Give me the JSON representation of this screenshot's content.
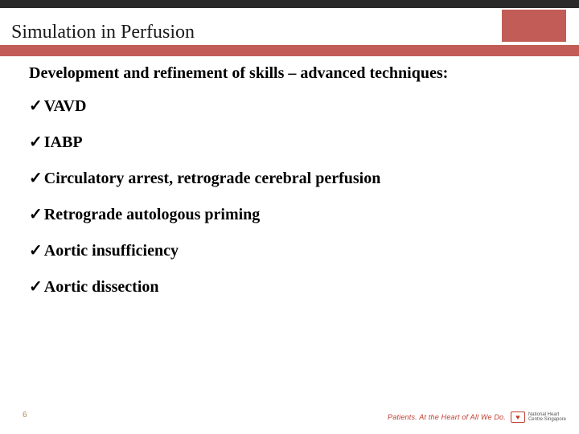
{
  "colors": {
    "top_bar": "#2a2a2a",
    "band": "#c15d56",
    "text": "#000000",
    "tagline": "#c23b2e",
    "page_num": "#b58a5a",
    "background": "#ffffff"
  },
  "typography": {
    "title_fontsize": 24,
    "body_fontsize": 20,
    "body_weight": "bold",
    "footer_fontsize": 9,
    "font_family": "Times New Roman"
  },
  "title": "Simulation in Perfusion",
  "subtitle": "Development and refinement of skills – advanced techniques:",
  "bullet_glyph": "✓",
  "items": [
    "VAVD",
    "IABP",
    "Circulatory arrest, retrograde cerebral perfusion",
    "Retrograde autologous priming",
    "Aortic insufficiency",
    "Aortic dissection"
  ],
  "page_number": "6",
  "footer": {
    "tagline": "Patients. At the Heart of All We Do.",
    "logo_lines": [
      "National Heart",
      "Centre Singapore"
    ],
    "logo_glyph": "♥"
  }
}
